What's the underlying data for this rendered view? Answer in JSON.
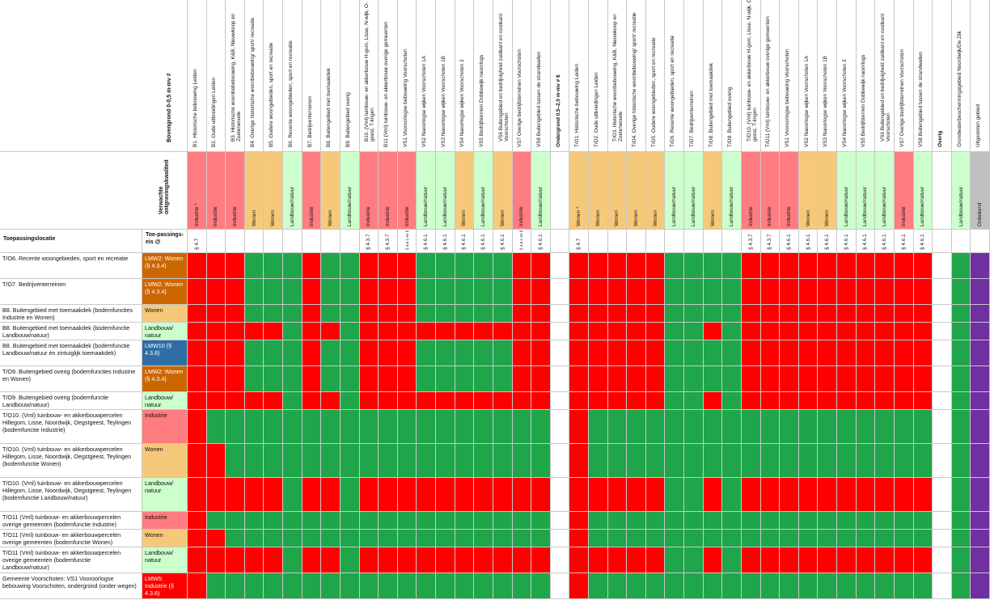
{
  "colors": {
    "red": "#ff0000",
    "green": "#1fa64a",
    "industry": "#ff7c80",
    "housing": "#f6c97a",
    "nature": "#ccffcc",
    "unknown": "#bfbfbf",
    "purple": "#7030a0",
    "orange": "#cc6600",
    "blue": "#2f6da5",
    "white": "#ffffff"
  },
  "headers": {
    "bovengrond": "Bovengrond 0-0,5 m-mv #",
    "verwachte": "Verwachte ontgravingskwaliteit",
    "toepassingslocatie": "Toepassingslocatie",
    "toepassingseis": "Toe-passings-eis @"
  },
  "columns": [
    {
      "key": "b1",
      "label": "B1. Historische bebouwing Leiden",
      "quality": "Industrie *",
      "qcolor": "industry",
      "eis": "§ 4.7"
    },
    {
      "key": "b2",
      "label": "B2. Oude uitbreidingen Leiden",
      "quality": "Industrie",
      "qcolor": "industry",
      "eis": ""
    },
    {
      "key": "b3",
      "label": "B3. Historische woonbebebouwing, K&B, Nieuwkoop en Zoeterwoude",
      "quality": "Industrie",
      "qcolor": "industry",
      "eis": ""
    },
    {
      "key": "b4",
      "label": "B4. Overige historische woonbebouwing/ sport/ recreatie",
      "quality": "Wonen",
      "qcolor": "housing",
      "eis": ""
    },
    {
      "key": "b5",
      "label": "B5. Oudere woongebieden, sport en recreatie",
      "quality": "Wonen",
      "qcolor": "housing",
      "eis": ""
    },
    {
      "key": "b6",
      "label": "B6. Recente woongebieden, sport en recreatie",
      "quality": "Landbouw/natuur",
      "qcolor": "nature",
      "eis": ""
    },
    {
      "key": "b7",
      "label": "B7. Bedrijventerreinen",
      "quality": "Industrie",
      "qcolor": "industry",
      "eis": ""
    },
    {
      "key": "b8",
      "label": "B8. Buitengebied met toemaakdek",
      "quality": "Wonen",
      "qcolor": "housing",
      "eis": ""
    },
    {
      "key": "b9",
      "label": "B9. Buitengebied overig",
      "quality": "Landbouw/natuur",
      "qcolor": "nature",
      "eis": ""
    },
    {
      "key": "b10",
      "label": "B10. (Vml) tuinbouw- en akkerbouw H-gom, Lisse, N-wijk, O-geest, T-lingen",
      "quality": "Industrie",
      "qcolor": "industry",
      "eis": "§ 4.3.7"
    },
    {
      "key": "b11",
      "label": "B11 (Vml) tuinbouw- en akkerbouw overige gemeenten",
      "quality": "Industrie",
      "qcolor": "industry",
      "eis": "§ 4.3.7"
    },
    {
      "key": "vs1",
      "label": "VS1 Voorooriogse bebouwing Voorschoten",
      "quality": "Industrie",
      "qcolor": "industry",
      "eis": "§ 4.6.1 en § 4.7"
    },
    {
      "key": "vs2",
      "label": "VS2 Naoorlogse wijken Voorschoten 1A",
      "quality": "Landbouw/natuur",
      "qcolor": "nature",
      "eis": "§ 4.6.1"
    },
    {
      "key": "vs3",
      "label": "VS3 Naoorlogse wijken Voorschoten 1B",
      "quality": "Landbouw/natuur",
      "qcolor": "nature",
      "eis": "§ 4.6.1"
    },
    {
      "key": "vs4",
      "label": "VS4 Naoorlogse wijken Voorschoten 2",
      "quality": "Wonen",
      "qcolor": "housing",
      "eis": "§ 4.6.1"
    },
    {
      "key": "vs5",
      "label": "VS5 Bedrijfsterrein Dobbewijk naoorlogs",
      "quality": "Landbouw/natuur",
      "qcolor": "nature",
      "eis": "§ 4.6.1"
    },
    {
      "key": "vs6",
      "label": "VS6 Buitengebied en bedrijvigheid zuidkant en oostkant Voorschoten",
      "quality": "Wonen",
      "qcolor": "housing",
      "eis": "§ 4.6.1"
    },
    {
      "key": "vs7",
      "label": "VS7 Overige bedrijfsterreinen Voorschoten",
      "quality": "Industrie",
      "qcolor": "industry",
      "eis": "§ 4.6.1 en § 4.7"
    },
    {
      "key": "vs8",
      "label": "VS8 Buitengebied tussen de strandwallen",
      "quality": "Landbouw/natuur",
      "qcolor": "nature",
      "eis": "§ 4.6.1"
    },
    {
      "key": "sep1",
      "label": "Ondergrond 0,5–2,0 m-mv # $",
      "quality": "",
      "qcolor": "white",
      "eis": "",
      "bold": true
    },
    {
      "key": "to1",
      "label": "T/O1. Historische bebouwing Leiden",
      "quality": "Wonen *",
      "qcolor": "housing",
      "eis": "§ 4.7"
    },
    {
      "key": "to2",
      "label": "T/O2. Oude uitbreidingen Leiden",
      "quality": "Wonen",
      "qcolor": "housing",
      "eis": ""
    },
    {
      "key": "to3",
      "label": "T/O3. Historische woonbebouwing, K&B, Nieuwkoop en Zoeterwoude",
      "quality": "Wonen",
      "qcolor": "housing",
      "eis": ""
    },
    {
      "key": "to4",
      "label": "T/O4. Overige historische woonbebouwing/ sport/ recreatie",
      "quality": "Wonen",
      "qcolor": "housing",
      "eis": ""
    },
    {
      "key": "to5",
      "label": "T/O5. Oudere woongebieden, sport en recreatie",
      "quality": "Wonen",
      "qcolor": "housing",
      "eis": ""
    },
    {
      "key": "to6",
      "label": "T/O6. Recente woongebieden, sport en recreatie",
      "quality": "Landbouw/natuur",
      "qcolor": "nature",
      "eis": ""
    },
    {
      "key": "to7",
      "label": "T/O7. Bedrijventerreinen",
      "quality": "Landbouw/natuur",
      "qcolor": "nature",
      "eis": ""
    },
    {
      "key": "to8",
      "label": "T/O8. Buitengebied met toemaakdek",
      "quality": "Wonen",
      "qcolor": "housing",
      "eis": ""
    },
    {
      "key": "to9",
      "label": "T/O9. Buitengebied overig",
      "quality": "Landbouw/natuur",
      "qcolor": "nature",
      "eis": ""
    },
    {
      "key": "to10",
      "label": "T/O10. (Vml) tuinbouw- en akkerbouw H-gom, Lisse, N-wijk, O-geest, T-lingen",
      "quality": "Industrie",
      "qcolor": "industry",
      "eis": "§ 4.3.7"
    },
    {
      "key": "to11",
      "label": "T/O11 (Vml) tuinbouw- en akkerbouw overige gemeenten",
      "quality": "Industrie",
      "qcolor": "industry",
      "eis": "§ 4.3.7"
    },
    {
      "key": "ovs1",
      "label": "VS1 Voorooriogse bebouwing Voorschoten",
      "quality": "Industrie",
      "qcolor": "industry",
      "eis": "§ 4.6.1"
    },
    {
      "key": "ovs2",
      "label": "VS2 Naoorlogse wijken Voorschoten 1A",
      "quality": "Wonen",
      "qcolor": "housing",
      "eis": "§ 4.6.1"
    },
    {
      "key": "ovs3",
      "label": "VS3 Naoorlogse wijken Voorschoten 1B",
      "quality": "Wonen",
      "qcolor": "housing",
      "eis": "§ 4.6.1"
    },
    {
      "key": "ovs4",
      "label": "VS4 Naoorlogse wijken Voorschoten 2",
      "quality": "Landbouw/natuur",
      "qcolor": "nature",
      "eis": "§ 4.6.1"
    },
    {
      "key": "ovs5",
      "label": "VS5 Bedrijfsterrein Dobbewijk naoorlogs",
      "quality": "Landbouw/natuur",
      "qcolor": "nature",
      "eis": "§ 4.6.1"
    },
    {
      "key": "ovs6",
      "label": "VS6 Buitengebied en bedrijvigheid zuidkant en oostkant Voorschoten",
      "quality": "Landbouw/natuur",
      "qcolor": "nature",
      "eis": "§ 4.6.1"
    },
    {
      "key": "ovs7",
      "label": "VS7 Overige bedrijfsterreinen Voorschoten",
      "quality": "Industrie",
      "qcolor": "industry",
      "eis": "§ 4.6.1"
    },
    {
      "key": "ovs8",
      "label": "VS8 Buitengebied tussen de strandwallen",
      "quality": "Landbouw/natuur",
      "qcolor": "nature",
      "eis": "§ 4.6.1"
    },
    {
      "key": "sep2",
      "label": "Overig",
      "quality": "",
      "qcolor": "white",
      "eis": "",
      "bold": true
    },
    {
      "key": "gwb",
      "label": "Grondwaterbeschermingsgebied Noordwijk/De Zilk",
      "quality": "Landbouw/natuur",
      "qcolor": "nature",
      "eis": ""
    },
    {
      "key": "uit",
      "label": "Uitgesloten gebied",
      "quality": "Onbekend",
      "qcolor": "unknown",
      "eis": ""
    }
  ],
  "rows": [
    {
      "label": "T/O6. Recente woongebieden, sport en recreatie",
      "quality": "LMW2: Wonen (§ 4.3.4)",
      "qcolor": "orange",
      "cells": "RRRGGGRGGRRRGGGGGRRWRRRRRGGGGRRRRRRRRRRWGP"
    },
    {
      "label": "T/O7. Bedrijventerreinen",
      "quality": "LMW2: Wonen (§ 4.3.4)",
      "qcolor": "orange",
      "cells": "RRRGGGRGGRRRGGGGGRRWRRRRRGGGGRRRRRRRRRRWGP"
    },
    {
      "label": "B8. Buitengebied met toemaakdek (bodemfuncties Industrie en Wonen)",
      "quality": "Wonen",
      "qcolor": "housing",
      "cells": "RRRGGGRGGRRRGGGGGRRWRRRRRGGGGRRRRRRRRRRWGP"
    },
    {
      "label": "B8. Buitengebied met toemaakdek (bodemfunctie Landbouw/natuur)",
      "quality": "Landbouw/ natuur",
      "qcolor": "nature",
      "cells": "RRRRRGRRGRRRRRRRRRRWRRRRRGGRGRRRRRRRRRRWGP"
    },
    {
      "label": "B8. Buitengebied met toemaakdek (bodemfunctie Landbouw/natuur én zintuiglijk toemaakdek)",
      "quality": "LMW10 (§ 4.3.8)",
      "qcolor": "blue",
      "cells": "RRRGGGRGGRRRGGGGGRRWRRRRRGGGGRRRRRRRRRRWGP"
    },
    {
      "label": "T/O9. Buitengebied overig (bodemfuncties Industrie en Wonen)",
      "quality": "LMW2: Wonen (§ 4.3.4)",
      "qcolor": "orange",
      "cells": "RRRGGGRGGRRRGGGGGRRWRRRRRGGGGRRRRRRRRRRWGP"
    },
    {
      "label": "T/O9. Buitengebied overig (bodemfunctie Landbouw/natuur)",
      "quality": "Landbouw/ natuur",
      "qcolor": "nature",
      "cells": "RRRRRGRRGRRRRRRRRRRWRRRRRGGRGRRRRRRRRRRWGP"
    },
    {
      "label": "T/O10. (Vml) tuinbouw- en akkerbouwpercelen Hillegom, Lisse, Noordwijk, Oegstgeest, Teylingen (bodemfunctie Industrie)",
      "quality": "Industrie",
      "qcolor": "industry",
      "cells": "RGGGGGGGGGGGGGGGGGGWRGGGGGGGGGGGGGGGGGGWGP"
    },
    {
      "label": "T/O10. (Vml) tuinbouw- en akkerbouwpercelen Hillegom, Lisse, Noordwijk, Oegstgeest, Teylingen (bodemfunctie Wonen)",
      "quality": "Wonen",
      "qcolor": "housing",
      "cells": "RRGGGGGGGGGGGGGGGGGWRGGGGGGGGGGGGGGGGGGWGP"
    },
    {
      "label": "T/O10. (Vml) tuinbouw- en akkerbouwpercelen Hillegom, Lisse, Noordwijk, Oegstgeest, Teylingen (bodemfunctie Landbouw/natuur)",
      "quality": "Landbouw/ natuur",
      "qcolor": "nature",
      "cells": "RRRRRGRRGRRRRRRRRRRWRRRRRGGRGRRRRRRRRRRWGP"
    },
    {
      "label": "T/O11 (Vml) tuinbouw- en akkerbouwpercelen overige gemeenten (bodemfunctie Industrie)",
      "quality": "Industrie",
      "qcolor": "industry",
      "cells": "RGGGGGGGGGGGGGGGGGGWRGGGGGGGGGGGGGGGGGGWGP"
    },
    {
      "label": "T/O11 (Vml) tuinbouw- en akkerbouwpercelen overige gemeenten (bodemfunctie Wonen)",
      "quality": "Wonen",
      "qcolor": "housing",
      "cells": "RRGGGGGGGGGGGGGGGGGWRGGGGGGGGGGGGGGGGGGWGP"
    },
    {
      "label": "T/O11 (Vml) tuinbouw- en akkerbouwpercelen overige gemeenten (bodemfunctie Landbouw/natuur)",
      "quality": "Landbouw/ natuur",
      "qcolor": "nature",
      "cells": "RRRRRGRRGRRRRRRRRRRWRRRRRGGRGRRRRRRRRRRWGP"
    },
    {
      "label": "Gemeente Voorschoten: VS1 Vooroorlogse bebouwing Voorschoten, ondergrond (onder wegen)",
      "quality": "LMW5: Industrie (§ 4.3.6)",
      "qcolor": "red",
      "cells": "RGGGGGGGGGGGGGGGGGGWRGGGGGGGGGGGGGGGGGGWGP"
    }
  ]
}
